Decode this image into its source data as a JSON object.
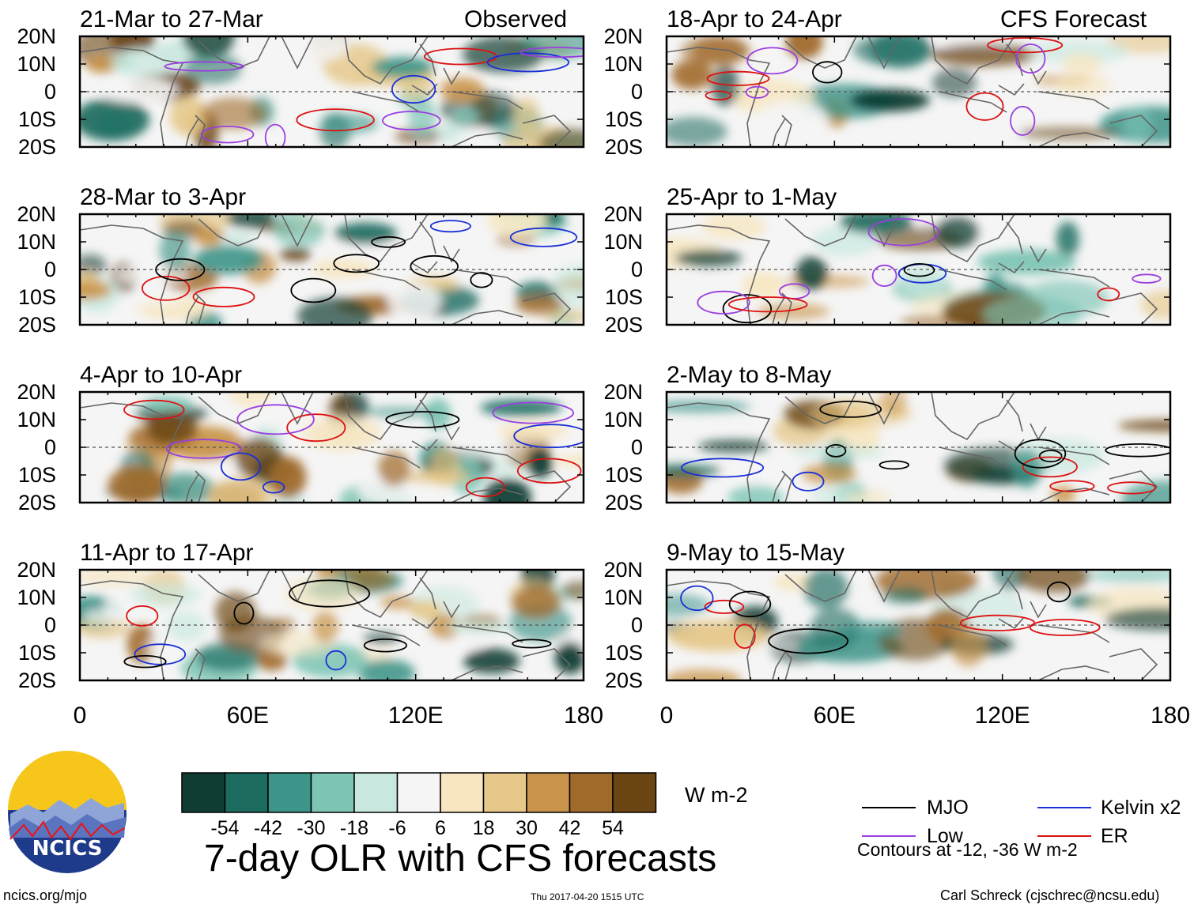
{
  "figure": {
    "title": "7-day OLR with CFS forecasts",
    "left_column_label": "Observed",
    "right_column_label": "CFS Forecast"
  },
  "panels": [
    {
      "title": "21-Mar to 27-Mar",
      "type": "observed"
    },
    {
      "title": "28-Mar to 3-Apr",
      "type": "observed"
    },
    {
      "title": "4-Apr to 10-Apr",
      "type": "observed"
    },
    {
      "title": "11-Apr to 17-Apr",
      "type": "observed"
    },
    {
      "title": "18-Apr to 24-Apr",
      "type": "forecast"
    },
    {
      "title": "25-Apr to 1-May",
      "type": "forecast"
    },
    {
      "title": "2-May to 8-May",
      "type": "forecast"
    },
    {
      "title": "9-May to 15-May",
      "type": "forecast"
    }
  ],
  "lat_labels": [
    "20N",
    "10N",
    "0",
    "10S",
    "20S"
  ],
  "lon_labels": [
    "0",
    "60E",
    "120E",
    "180"
  ],
  "colorbar": {
    "units": "W m-2",
    "tick_labels": [
      "-54",
      "-42",
      "-30",
      "-18",
      "-6",
      "6",
      "18",
      "30",
      "42",
      "54"
    ],
    "colors": [
      "#0f3d33",
      "#1b6b5f",
      "#3d9488",
      "#7dc5b5",
      "#c8e8df",
      "#f5f5f5",
      "#f7e6c0",
      "#e6c88a",
      "#c9944a",
      "#a06a2a",
      "#6b4514"
    ]
  },
  "legend": {
    "items": [
      {
        "label": "MJO",
        "color": "#000000"
      },
      {
        "label": "Kelvin x2",
        "color": "#1a2fd6"
      },
      {
        "label": "Low",
        "color": "#9a3ee0"
      },
      {
        "label": "ER",
        "color": "#dd1111"
      }
    ],
    "note": "Contours at -12, -36 W m-2"
  },
  "logo": {
    "text": "NCICS"
  },
  "footer": {
    "website": "ncics.org/mjo",
    "timestamp": "Thu 2017-04-20 1515 UTC",
    "author": "Carl Schreck (cjschrec@ncsu.edu)"
  }
}
